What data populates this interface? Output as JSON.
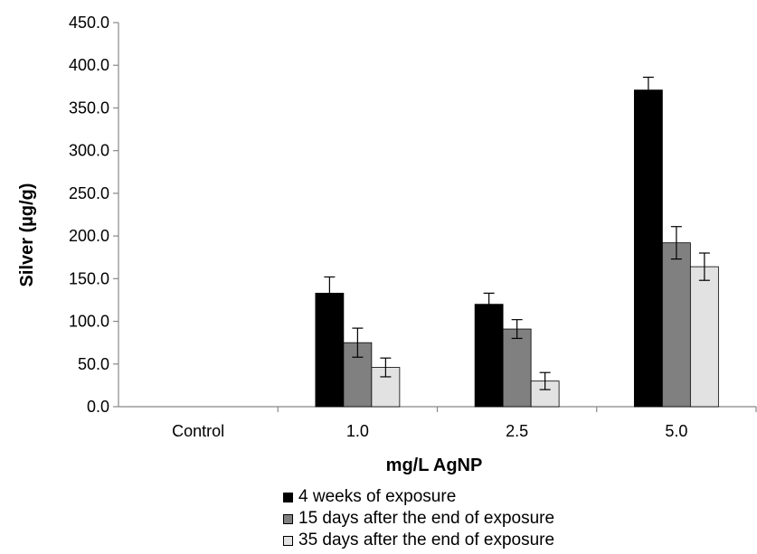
{
  "chart_data": {
    "type": "bar",
    "title": "",
    "xlabel": "mg/L AgNP",
    "ylabel": "Silver (µg/g)",
    "ylim": [
      0,
      450
    ],
    "yticks": [
      "0.0",
      "50.0",
      "100.0",
      "150.0",
      "200.0",
      "250.0",
      "300.0",
      "350.0",
      "400.0",
      "450.0"
    ],
    "categories": [
      "Control",
      "1.0",
      "2.5",
      "5.0"
    ],
    "series": [
      {
        "name": "4 weeks of exposure",
        "color": "#000000",
        "values": [
          0,
          133,
          120,
          371
        ],
        "errors": [
          0,
          19,
          13,
          15
        ]
      },
      {
        "name": "15 days after the end of exposure",
        "color": "#808080",
        "values": [
          0,
          75,
          91,
          192
        ],
        "errors": [
          0,
          17,
          11,
          19
        ]
      },
      {
        "name": "35 days after the end of exposure",
        "color": "#e2e2e2",
        "values": [
          0,
          46,
          30,
          164
        ],
        "errors": [
          0,
          11,
          10,
          16
        ]
      }
    ],
    "legend_position": "bottom",
    "grid": false
  }
}
